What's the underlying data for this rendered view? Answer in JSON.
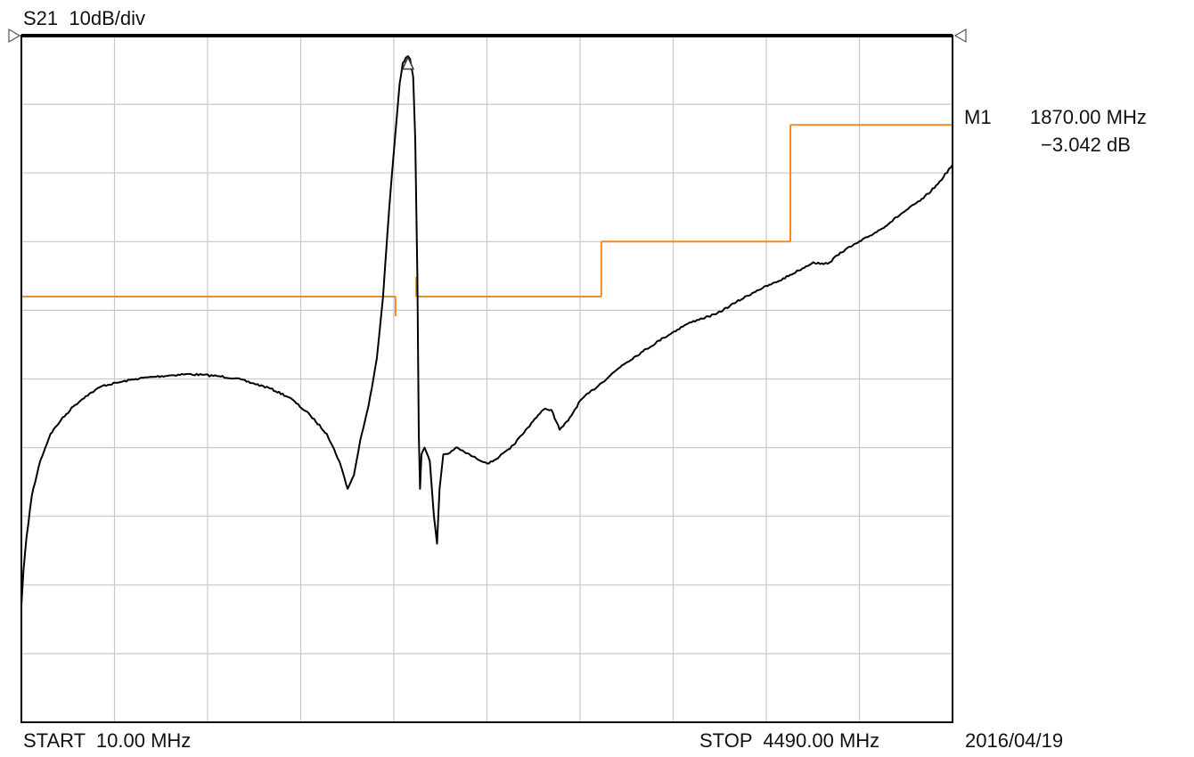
{
  "header": {
    "title": "S21  10dB/div"
  },
  "footer": {
    "start": "START  10.00 MHz",
    "stop": "STOP  4490.00 MHz",
    "date": "2016/04/19"
  },
  "marker": {
    "name": "M1",
    "frequency": "1870.00 MHz",
    "value": "−3.042 dB"
  },
  "colors": {
    "trace": "#000000",
    "limit": "#f08a24",
    "grid": "#c8c8c8",
    "frame": "#000000"
  },
  "chart_data": {
    "type": "line",
    "xlim": [
      10,
      4490
    ],
    "ylim": [
      -100,
      0
    ],
    "grid": true,
    "xdivisions": 10,
    "ydivisions": 10,
    "series": [
      {
        "values": [
          [
            10,
            -83
          ],
          [
            20,
            -78
          ],
          [
            35,
            -73
          ],
          [
            60,
            -67
          ],
          [
            100,
            -62
          ],
          [
            150,
            -58
          ],
          [
            200,
            -56
          ],
          [
            260,
            -54
          ],
          [
            320,
            -52.5
          ],
          [
            400,
            -51
          ],
          [
            480,
            -50.5
          ],
          [
            560,
            -50
          ],
          [
            640,
            -49.7
          ],
          [
            720,
            -49.5
          ],
          [
            800,
            -49.3
          ],
          [
            880,
            -49.4
          ],
          [
            960,
            -49.6
          ],
          [
            1040,
            -49.9
          ],
          [
            1120,
            -50.6
          ],
          [
            1200,
            -51.3
          ],
          [
            1300,
            -52.7
          ],
          [
            1400,
            -55.3
          ],
          [
            1480,
            -58
          ],
          [
            1540,
            -62
          ],
          [
            1580,
            -66
          ],
          [
            1610,
            -64
          ],
          [
            1640,
            -59
          ],
          [
            1680,
            -54
          ],
          [
            1720,
            -47
          ],
          [
            1750,
            -38
          ],
          [
            1780,
            -25
          ],
          [
            1810,
            -14
          ],
          [
            1830,
            -7
          ],
          [
            1845,
            -4
          ],
          [
            1860,
            -3.2
          ],
          [
            1870,
            -3.0
          ],
          [
            1880,
            -3.4
          ],
          [
            1895,
            -6
          ],
          [
            1905,
            -15
          ],
          [
            1915,
            -35
          ],
          [
            1922,
            -58
          ],
          [
            1928,
            -66
          ],
          [
            1935,
            -61
          ],
          [
            1950,
            -60
          ],
          [
            1975,
            -62
          ],
          [
            1995,
            -70
          ],
          [
            2010,
            -74
          ],
          [
            2022,
            -66
          ],
          [
            2040,
            -61
          ],
          [
            2070,
            -60.8
          ],
          [
            2100,
            -60
          ],
          [
            2140,
            -60.6
          ],
          [
            2200,
            -61.6
          ],
          [
            2260,
            -62.3
          ],
          [
            2310,
            -61.3
          ],
          [
            2360,
            -60.2
          ],
          [
            2420,
            -58.1
          ],
          [
            2480,
            -55.8
          ],
          [
            2530,
            -54.3
          ],
          [
            2560,
            -54.5
          ],
          [
            2600,
            -57.4
          ],
          [
            2640,
            -56.1
          ],
          [
            2700,
            -53.1
          ],
          [
            2800,
            -50.6
          ],
          [
            2900,
            -48
          ],
          [
            3000,
            -46
          ],
          [
            3100,
            -44
          ],
          [
            3200,
            -42.2
          ],
          [
            3260,
            -41.4
          ],
          [
            3350,
            -40.6
          ],
          [
            3450,
            -38.8
          ],
          [
            3550,
            -37.1
          ],
          [
            3650,
            -35.8
          ],
          [
            3750,
            -34.2
          ],
          [
            3820,
            -33
          ],
          [
            3870,
            -33.3
          ],
          [
            3900,
            -33
          ],
          [
            3950,
            -31.6
          ],
          [
            4050,
            -29.9
          ],
          [
            4150,
            -28.1
          ],
          [
            4250,
            -25.8
          ],
          [
            4350,
            -23.7
          ],
          [
            4420,
            -21.6
          ],
          [
            4490,
            -18.8
          ]
        ]
      }
    ],
    "limit_lines": [
      {
        "x": [
          10,
          1810
        ],
        "y": -38
      },
      {
        "x": [
          1910,
          2800
        ],
        "y": -38
      },
      {
        "x": [
          2800,
          3710
        ],
        "y": -30
      },
      {
        "x": [
          3710,
          4490
        ],
        "y": -13
      }
    ],
    "markers": [
      {
        "name": "M1",
        "x": 1870,
        "y": -3.042
      }
    ]
  }
}
